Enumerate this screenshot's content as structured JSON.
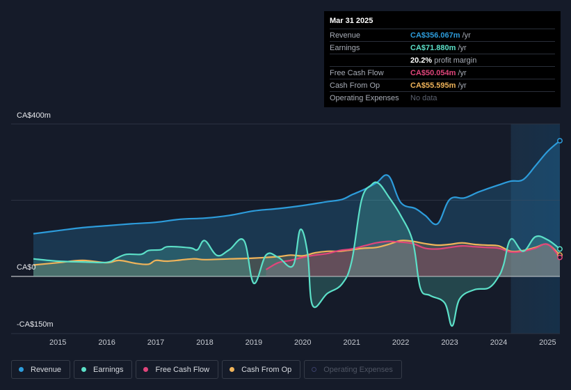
{
  "tooltip": {
    "date": "Mar 31 2025",
    "rows": [
      {
        "label": "Revenue",
        "value": "CA$356.067m",
        "unit": "/yr",
        "color": "#2d9cdb"
      },
      {
        "label": "Earnings",
        "value": "CA$71.880m",
        "unit": "/yr",
        "color": "#5ce0c8"
      },
      {
        "label": "",
        "value": "20.2%",
        "unit": "profit margin",
        "color": "#ffffff"
      },
      {
        "label": "Free Cash Flow",
        "value": "CA$50.054m",
        "unit": "/yr",
        "color": "#e0457b"
      },
      {
        "label": "Cash From Op",
        "value": "CA$55.595m",
        "unit": "/yr",
        "color": "#f0b45a"
      },
      {
        "label": "Operating Expenses",
        "value": "No data",
        "unit": "",
        "color": "#5c6270"
      }
    ]
  },
  "legend": [
    {
      "label": "Revenue",
      "color": "#2d9cdb",
      "active": true
    },
    {
      "label": "Earnings",
      "color": "#5ce0c8",
      "active": true
    },
    {
      "label": "Free Cash Flow",
      "color": "#e0457b",
      "active": true
    },
    {
      "label": "Cash From Op",
      "color": "#f0b45a",
      "active": true
    },
    {
      "label": "Operating Expenses",
      "color": "#3b3f6a",
      "active": false
    }
  ],
  "chart_data": {
    "type": "area",
    "ytick_labels": [
      "CA$400m",
      "CA$0",
      "-CA$150m"
    ],
    "ylim": [
      -150,
      400
    ],
    "xlim": [
      2014.5,
      2025.25
    ],
    "x_ticks": [
      2015,
      2016,
      2017,
      2018,
      2019,
      2020,
      2021,
      2022,
      2023,
      2024,
      2025
    ],
    "forecast_region_start": 2024.25,
    "series": [
      {
        "name": "Revenue",
        "color": "#2d9cdb",
        "points": [
          [
            2014.5,
            112
          ],
          [
            2015.0,
            120
          ],
          [
            2015.5,
            128
          ],
          [
            2016.0,
            133
          ],
          [
            2016.5,
            138
          ],
          [
            2017.0,
            142
          ],
          [
            2017.5,
            150
          ],
          [
            2018.0,
            153
          ],
          [
            2018.5,
            160
          ],
          [
            2019.0,
            172
          ],
          [
            2019.5,
            178
          ],
          [
            2020.0,
            186
          ],
          [
            2020.5,
            196
          ],
          [
            2020.8,
            202
          ],
          [
            2021.0,
            214
          ],
          [
            2021.25,
            228
          ],
          [
            2021.5,
            245
          ],
          [
            2021.75,
            264
          ],
          [
            2022.0,
            194
          ],
          [
            2022.3,
            178
          ],
          [
            2022.5,
            160
          ],
          [
            2022.75,
            138
          ],
          [
            2023.0,
            202
          ],
          [
            2023.3,
            206
          ],
          [
            2023.6,
            222
          ],
          [
            2024.0,
            240
          ],
          [
            2024.25,
            250
          ],
          [
            2024.5,
            254
          ],
          [
            2024.75,
            290
          ],
          [
            2025.0,
            328
          ],
          [
            2025.25,
            356
          ]
        ]
      },
      {
        "name": "Earnings",
        "color": "#5ce0c8",
        "points": [
          [
            2014.5,
            46
          ],
          [
            2015.0,
            40
          ],
          [
            2015.5,
            38
          ],
          [
            2016.0,
            37
          ],
          [
            2016.2,
            48
          ],
          [
            2016.4,
            58
          ],
          [
            2016.7,
            58
          ],
          [
            2016.85,
            68
          ],
          [
            2017.1,
            70
          ],
          [
            2017.25,
            78
          ],
          [
            2017.7,
            75
          ],
          [
            2017.85,
            70
          ],
          [
            2018.0,
            94
          ],
          [
            2018.25,
            55
          ],
          [
            2018.5,
            70
          ],
          [
            2018.8,
            94
          ],
          [
            2019.0,
            -18
          ],
          [
            2019.25,
            56
          ],
          [
            2019.5,
            50
          ],
          [
            2019.8,
            28
          ],
          [
            2019.95,
            123
          ],
          [
            2020.1,
            60
          ],
          [
            2020.2,
            -76
          ],
          [
            2020.5,
            -45
          ],
          [
            2020.8,
            -20
          ],
          [
            2021.0,
            40
          ],
          [
            2021.2,
            200
          ],
          [
            2021.4,
            240
          ],
          [
            2021.55,
            244
          ],
          [
            2021.75,
            210
          ],
          [
            2022.0,
            160
          ],
          [
            2022.25,
            90
          ],
          [
            2022.4,
            -30
          ],
          [
            2022.6,
            -50
          ],
          [
            2022.9,
            -70
          ],
          [
            2023.05,
            -130
          ],
          [
            2023.2,
            -60
          ],
          [
            2023.5,
            -35
          ],
          [
            2023.8,
            -30
          ],
          [
            2024.0,
            0
          ],
          [
            2024.1,
            30
          ],
          [
            2024.25,
            98
          ],
          [
            2024.5,
            66
          ],
          [
            2024.75,
            104
          ],
          [
            2025.0,
            96
          ],
          [
            2025.25,
            72
          ]
        ]
      },
      {
        "name": "Free Cash Flow",
        "color": "#e0457b",
        "points": [
          [
            2019.25,
            18
          ],
          [
            2019.5,
            36
          ],
          [
            2019.75,
            42
          ],
          [
            2020.0,
            50
          ],
          [
            2020.25,
            56
          ],
          [
            2020.5,
            60
          ],
          [
            2020.75,
            68
          ],
          [
            2021.0,
            72
          ],
          [
            2021.25,
            80
          ],
          [
            2021.5,
            88
          ],
          [
            2021.75,
            92
          ],
          [
            2022.0,
            90
          ],
          [
            2022.25,
            86
          ],
          [
            2022.5,
            74
          ],
          [
            2022.75,
            72
          ],
          [
            2023.0,
            76
          ],
          [
            2023.25,
            80
          ],
          [
            2023.5,
            78
          ],
          [
            2023.75,
            76
          ],
          [
            2024.0,
            74
          ],
          [
            2024.25,
            64
          ],
          [
            2024.5,
            66
          ],
          [
            2024.75,
            74
          ],
          [
            2025.0,
            84
          ],
          [
            2025.25,
            50
          ]
        ]
      },
      {
        "name": "Cash From Op",
        "color": "#f0b45a",
        "points": [
          [
            2014.5,
            30
          ],
          [
            2015.0,
            36
          ],
          [
            2015.5,
            42
          ],
          [
            2016.0,
            36
          ],
          [
            2016.25,
            42
          ],
          [
            2016.6,
            34
          ],
          [
            2016.85,
            32
          ],
          [
            2017.0,
            42
          ],
          [
            2017.25,
            40
          ],
          [
            2017.75,
            46
          ],
          [
            2018.0,
            44
          ],
          [
            2018.5,
            46
          ],
          [
            2019.0,
            48
          ],
          [
            2019.5,
            52
          ],
          [
            2019.75,
            56
          ],
          [
            2020.0,
            54
          ],
          [
            2020.25,
            62
          ],
          [
            2020.5,
            66
          ],
          [
            2020.75,
            66
          ],
          [
            2021.0,
            70
          ],
          [
            2021.25,
            74
          ],
          [
            2021.5,
            76
          ],
          [
            2021.75,
            84
          ],
          [
            2022.0,
            94
          ],
          [
            2022.25,
            92
          ],
          [
            2022.5,
            86
          ],
          [
            2022.75,
            82
          ],
          [
            2023.0,
            84
          ],
          [
            2023.25,
            88
          ],
          [
            2023.5,
            84
          ],
          [
            2023.75,
            82
          ],
          [
            2024.0,
            80
          ],
          [
            2024.25,
            66
          ],
          [
            2024.5,
            68
          ],
          [
            2024.75,
            76
          ],
          [
            2025.0,
            84
          ],
          [
            2025.25,
            56
          ]
        ]
      }
    ]
  }
}
